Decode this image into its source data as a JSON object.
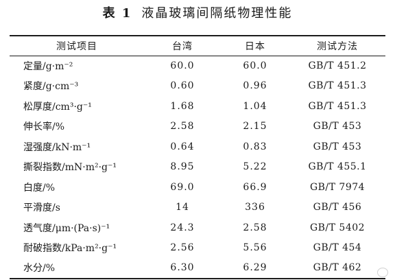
{
  "caption": {
    "label": "表 1",
    "title": "液晶玻璃间隔纸物理性能"
  },
  "table": {
    "headers": [
      "测试项目",
      "台湾",
      "日本",
      "测试方法"
    ],
    "rows": [
      {
        "item": "定量/g·m⁻²",
        "taiwan": "60.0",
        "japan": "60.0",
        "method": "GB/T 451.2"
      },
      {
        "item": "紧度/g·cm⁻³",
        "taiwan": "0.60",
        "japan": "0.96",
        "method": "GB/T 451.3"
      },
      {
        "item": "松厚度/cm³·g⁻¹",
        "taiwan": "1.68",
        "japan": "1.04",
        "method": "GB/T 451.3"
      },
      {
        "item": "伸长率/%",
        "taiwan": "2.58",
        "japan": "2.15",
        "method": "GB/T 453"
      },
      {
        "item": "湿强度/kN·m⁻¹",
        "taiwan": "0.64",
        "japan": "0.83",
        "method": "GB/T 453"
      },
      {
        "item": "撕裂指数/mN·m²·g⁻¹",
        "taiwan": "8.95",
        "japan": "5.22",
        "method": "GB/T 455.1"
      },
      {
        "item": "白度/%",
        "taiwan": "69.0",
        "japan": "66.9",
        "method": "GB/T 7974"
      },
      {
        "item": "平滑度/s",
        "taiwan": "14",
        "japan": "336",
        "method": "GB/T 456"
      },
      {
        "item": "透气度/μm·(Pa·s)⁻¹",
        "taiwan": "24.3",
        "japan": "2.58",
        "method": "GB/T 5402"
      },
      {
        "item": "耐破指数/kPa·m²·g⁻¹",
        "taiwan": "2.56",
        "japan": "5.56",
        "method": "GB/T 454"
      },
      {
        "item": "水分/%",
        "taiwan": "6.30",
        "japan": "6.29",
        "method": "GB/T 462"
      }
    ]
  },
  "watermark": {
    "icon": "wechat-icon"
  }
}
